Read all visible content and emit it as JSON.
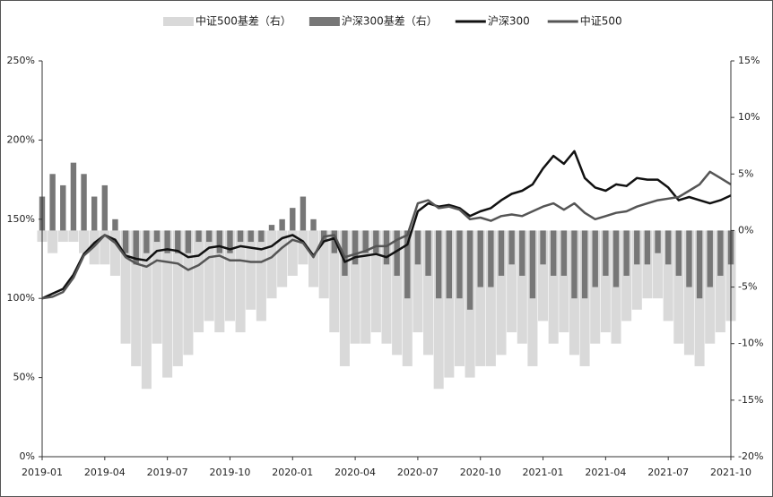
{
  "chart_data": {
    "type": "combo",
    "categories": [
      "2019-01",
      null,
      null,
      null,
      null,
      null,
      "2019-04",
      null,
      null,
      null,
      null,
      null,
      "2019-07",
      null,
      null,
      null,
      null,
      null,
      "2019-10",
      null,
      null,
      null,
      null,
      null,
      "2020-01",
      null,
      null,
      null,
      null,
      null,
      "2020-04",
      null,
      null,
      null,
      null,
      null,
      "2020-07",
      null,
      null,
      null,
      null,
      null,
      "2020-10",
      null,
      null,
      null,
      null,
      null,
      "2021-01",
      null,
      null,
      null,
      null,
      null,
      "2021-04",
      null,
      null,
      null,
      null,
      null,
      "2021-07",
      null,
      null,
      null,
      null,
      null,
      "2021-10"
    ],
    "series": [
      {
        "name": "中证500基差（右）",
        "type": "bar",
        "axis": "y2",
        "color": "#d9d9d9",
        "values": [
          -1,
          -2,
          -1,
          -1,
          -2,
          -3,
          -3,
          -4,
          -10,
          -12,
          -14,
          -10,
          -13,
          -12,
          -11,
          -9,
          -8,
          -9,
          -8,
          -9,
          -7,
          -8,
          -6,
          -5,
          -4,
          -3,
          -5,
          -6,
          -9,
          -12,
          -10,
          -10,
          -9,
          -10,
          -11,
          -12,
          -9,
          -11,
          -14,
          -13,
          -12,
          -13,
          -12,
          -12,
          -11,
          -9,
          -10,
          -12,
          -8,
          -10,
          -9,
          -11,
          -12,
          -10,
          -9,
          -10,
          -8,
          -7,
          -6,
          -6,
          -8,
          -10,
          -11,
          -12,
          -10,
          -9,
          -8
        ]
      },
      {
        "name": "沪深300基差（右）",
        "type": "bar",
        "axis": "y2",
        "color": "#777777",
        "values": [
          3,
          5,
          4,
          6,
          5,
          3,
          4,
          1,
          -2,
          -3,
          -2,
          -1,
          -2,
          -2,
          -2,
          -1,
          -1,
          -2,
          -2,
          -1,
          -1,
          -1,
          0.5,
          1,
          2,
          3,
          1,
          -1,
          -2,
          -4,
          -3,
          -2,
          -2,
          -3,
          -4,
          -6,
          -3,
          -4,
          -6,
          -6,
          -6,
          -7,
          -5,
          -5,
          -4,
          -3,
          -4,
          -6,
          -3,
          -4,
          -4,
          -6,
          -6,
          -5,
          -4,
          -5,
          -4,
          -3,
          -3,
          -2,
          -3,
          -4,
          -5,
          -6,
          -5,
          -4,
          -3
        ]
      },
      {
        "name": "沪深300",
        "type": "line",
        "color": "#111111",
        "values": [
          100,
          103,
          106,
          115,
          128,
          135,
          140,
          137,
          127,
          125,
          124,
          130,
          131,
          130,
          126,
          127,
          132,
          133,
          131,
          133,
          132,
          131,
          133,
          138,
          140,
          136,
          127,
          136,
          138,
          123,
          126,
          127,
          128,
          126,
          130,
          134,
          155,
          160,
          158,
          159,
          157,
          152,
          155,
          157,
          162,
          166,
          168,
          172,
          182,
          190,
          185,
          193,
          176,
          170,
          168,
          172,
          171,
          176,
          175,
          175,
          170,
          162,
          164,
          162,
          160,
          162,
          165
        ]
      },
      {
        "name": "中证500",
        "type": "line",
        "color": "#555555",
        "values": [
          100,
          101,
          104,
          113,
          127,
          133,
          140,
          135,
          126,
          122,
          120,
          124,
          123,
          122,
          118,
          121,
          126,
          127,
          124,
          124,
          123,
          123,
          126,
          132,
          137,
          135,
          126,
          139,
          140,
          126,
          128,
          130,
          133,
          133,
          137,
          140,
          160,
          162,
          157,
          158,
          156,
          150,
          151,
          149,
          152,
          153,
          152,
          155,
          158,
          160,
          156,
          160,
          154,
          150,
          152,
          154,
          155,
          158,
          160,
          162,
          163,
          164,
          168,
          172,
          180,
          176,
          172
        ]
      }
    ],
    "ylim": [
      0,
      250
    ],
    "yticks": [
      {
        "value": 0,
        "label": "0%"
      },
      {
        "value": 50,
        "label": "50%"
      },
      {
        "value": 100,
        "label": "100%"
      },
      {
        "value": 150,
        "label": "150%"
      },
      {
        "value": 200,
        "label": "200%"
      },
      {
        "value": 250,
        "label": "250%"
      }
    ],
    "y2lim": [
      -20,
      15
    ],
    "y2ticks": [
      {
        "value": -20,
        "label": "-20%"
      },
      {
        "value": -15,
        "label": "-15%"
      },
      {
        "value": -10,
        "label": "-10%"
      },
      {
        "value": -5,
        "label": "-5%"
      },
      {
        "value": 0,
        "label": "0%"
      },
      {
        "value": 5,
        "label": "5%"
      },
      {
        "value": 10,
        "label": "10%"
      },
      {
        "value": 15,
        "label": "15%"
      }
    ],
    "legend": "top"
  }
}
